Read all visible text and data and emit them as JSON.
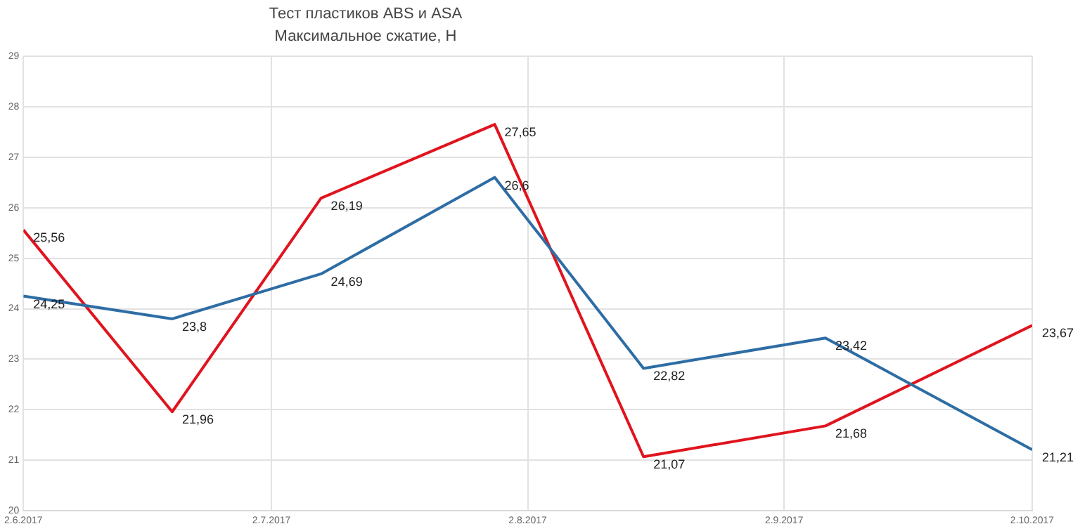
{
  "chart_data": {
    "type": "line",
    "title": "Тест пластиков ABS и ASA",
    "subtitle": "Максимальное сжатие, Н",
    "x": [
      "2017-06-02",
      "2017-06-20",
      "2017-07-08",
      "2017-07-29",
      "2017-08-16",
      "2017-09-07",
      "2017-10-02"
    ],
    "series": [
      {
        "color": "#2e6da4",
        "values": [
          24.25,
          23.8,
          24.69,
          26.6,
          22.82,
          23.42,
          21.21
        ],
        "value_labels": [
          "24,25",
          "23,8",
          "24,69",
          "26,6",
          "22,82",
          "23,42",
          "21,21"
        ]
      },
      {
        "color": "#e0141e",
        "values": [
          25.56,
          21.96,
          26.19,
          27.65,
          21.07,
          21.68,
          23.67
        ],
        "value_labels": [
          "25,56",
          "21,96",
          "26,19",
          "27,65",
          "21,07",
          "21,68",
          "23,67"
        ]
      }
    ],
    "xlim": [
      "2017-06-02",
      "2017-10-02"
    ],
    "xticks": [
      {
        "value": "2017-06-02",
        "label": "2.6.2017"
      },
      {
        "value": "2017-07-02",
        "label": "2.7.2017"
      },
      {
        "value": "2017-08-02",
        "label": "2.8.2017"
      },
      {
        "value": "2017-09-02",
        "label": "2.9.2017"
      },
      {
        "value": "2017-10-02",
        "label": "2.10.2017"
      }
    ],
    "ylim": [
      20,
      29
    ],
    "yticks": [
      20,
      21,
      22,
      23,
      24,
      25,
      26,
      27,
      28,
      29
    ],
    "grid": true,
    "legend": false,
    "marker": "none",
    "line_style": "solid"
  }
}
